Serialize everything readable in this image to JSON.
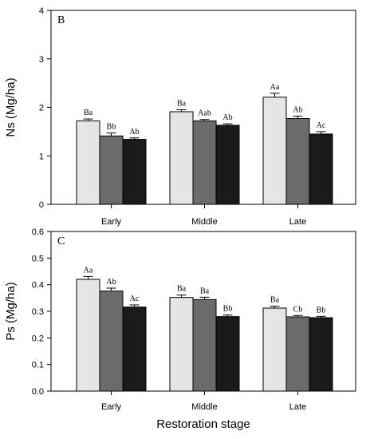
{
  "chart_data": [
    {
      "type": "bar",
      "panel_label": "B",
      "ylabel": "Ns (Mg/ha)",
      "ylim": [
        0,
        4
      ],
      "yticks": [
        0,
        1,
        2,
        3,
        4
      ],
      "ytick_labels": [
        "0",
        "1",
        "2",
        "3",
        "4"
      ],
      "categories": [
        "Early",
        "Middle",
        "Late"
      ],
      "series": [
        {
          "values": [
            1.72,
            1.91,
            2.21
          ],
          "errors": [
            0.04,
            0.04,
            0.08
          ],
          "labels": [
            "Ba",
            "Ba",
            "Aa"
          ],
          "color": "#e5e5e5"
        },
        {
          "values": [
            1.41,
            1.72,
            1.77
          ],
          "errors": [
            0.06,
            0.03,
            0.05
          ],
          "labels": [
            "Bb",
            "Aab",
            "Ab"
          ],
          "color": "#6b6b6b"
        },
        {
          "values": [
            1.34,
            1.63,
            1.45
          ],
          "errors": [
            0.03,
            0.03,
            0.05
          ],
          "labels": [
            "Ab",
            "Ab",
            "Ac"
          ],
          "color": "#1a1a1a"
        }
      ]
    },
    {
      "type": "bar",
      "panel_label": "C",
      "ylabel": "Ps (Mg/ha)",
      "xlabel": "Restoration stage",
      "ylim": [
        0,
        0.6
      ],
      "yticks": [
        0,
        0.1,
        0.2,
        0.3,
        0.4,
        0.5,
        0.6
      ],
      "ytick_labels": [
        "0.0",
        "0.1",
        "0.2",
        "0.3",
        "0.4",
        "0.5",
        "0.6"
      ],
      "categories": [
        "Early",
        "Middle",
        "Late"
      ],
      "series": [
        {
          "values": [
            0.42,
            0.352,
            0.312
          ],
          "errors": [
            0.011,
            0.009,
            0.007
          ],
          "labels": [
            "Aa",
            "Ba",
            "Ba"
          ],
          "color": "#e5e5e5"
        },
        {
          "values": [
            0.376,
            0.344,
            0.279
          ],
          "errors": [
            0.011,
            0.009,
            0.005
          ],
          "labels": [
            "Ab",
            "Ba",
            "Cb"
          ],
          "color": "#6b6b6b"
        },
        {
          "values": [
            0.316,
            0.28,
            0.276
          ],
          "errors": [
            0.008,
            0.006,
            0.005
          ],
          "labels": [
            "Ac",
            "Bb",
            "Bb"
          ],
          "color": "#1a1a1a"
        }
      ]
    }
  ]
}
